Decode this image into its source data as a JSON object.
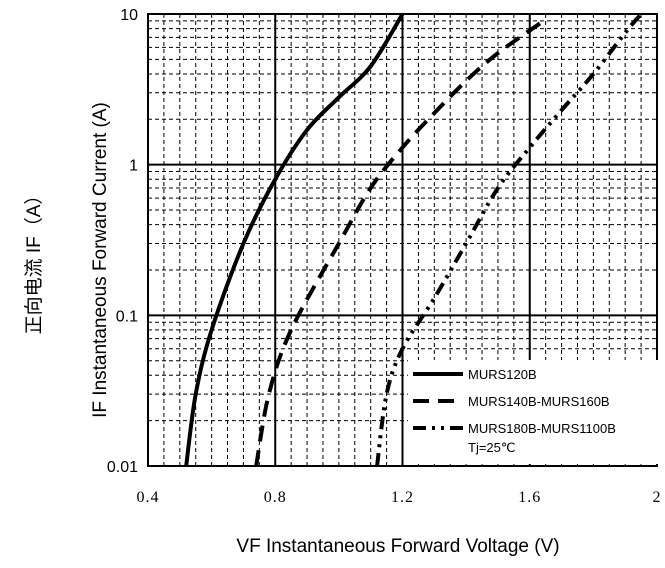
{
  "chart_data": {
    "type": "line",
    "title": "",
    "xlabel": "VF  Instantaneous Forward Voltage (V)",
    "ylabel": "IF Instantaneous Forward Current (A)",
    "ylabel_cn": "正向电流 IF（A）",
    "xlim": [
      0.4,
      2.0
    ],
    "ylim": [
      0.01,
      10
    ],
    "y_scale": "log",
    "grid": true,
    "x_ticks": [
      "0.4",
      "0.8",
      "1.2",
      "1.6",
      "2"
    ],
    "x_tick_values": [
      0.4,
      0.8,
      1.2,
      1.6,
      2.0
    ],
    "y_ticks": [
      "0.01",
      "0.1",
      "1",
      "10"
    ],
    "y_tick_values": [
      0.01,
      0.1,
      1,
      10
    ],
    "legend_position": "bottom-right",
    "annotation": "Tj=25℃",
    "series": [
      {
        "name": "MURS120B",
        "style": "solid",
        "points": [
          [
            0.52,
            0.01
          ],
          [
            0.55,
            0.03
          ],
          [
            0.6,
            0.08
          ],
          [
            0.7,
            0.3
          ],
          [
            0.8,
            0.8
          ],
          [
            0.9,
            1.7
          ],
          [
            1.0,
            2.8
          ],
          [
            1.1,
            4.5
          ],
          [
            1.2,
            10
          ]
        ]
      },
      {
        "name": "MURS140B-MURS160B",
        "style": "dashed",
        "points": [
          [
            0.74,
            0.01
          ],
          [
            0.78,
            0.03
          ],
          [
            0.85,
            0.08
          ],
          [
            1.0,
            0.3
          ],
          [
            1.1,
            0.7
          ],
          [
            1.2,
            1.3
          ],
          [
            1.3,
            2.2
          ],
          [
            1.4,
            3.6
          ],
          [
            1.5,
            5.5
          ],
          [
            1.65,
            9.2
          ]
        ]
      },
      {
        "name": "MURS180B-MURS1100B",
        "style": "dashdotdot",
        "points": [
          [
            1.12,
            0.01
          ],
          [
            1.15,
            0.03
          ],
          [
            1.2,
            0.06
          ],
          [
            1.3,
            0.13
          ],
          [
            1.4,
            0.3
          ],
          [
            1.5,
            0.7
          ],
          [
            1.6,
            1.3
          ],
          [
            1.7,
            2.3
          ],
          [
            1.8,
            4.0
          ],
          [
            1.9,
            7.5
          ],
          [
            1.95,
            10
          ]
        ]
      }
    ]
  }
}
